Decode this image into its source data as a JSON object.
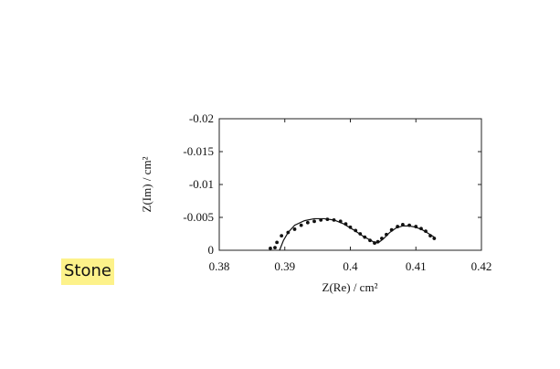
{
  "label": "Stone",
  "chart_data": {
    "type": "scatter",
    "xlabel": "Z(Re) /   cm²",
    "ylabel": "Z(Im) /   cm²",
    "xlim": [
      0.38,
      0.42
    ],
    "xticks": [
      0.38,
      0.39,
      0.4,
      0.41,
      0.42
    ],
    "ylim": [
      0,
      -0.02
    ],
    "yticks": [
      0,
      -0.005,
      -0.01,
      -0.015,
      -0.02
    ],
    "series": [
      {
        "mode": "markers",
        "color": "#111111",
        "x": [
          0.3878,
          0.3885,
          0.3888,
          0.3895,
          0.3905,
          0.3915,
          0.3925,
          0.3935,
          0.3945,
          0.3955,
          0.3965,
          0.3975,
          0.3985,
          0.3993,
          0.4,
          0.4008,
          0.4015,
          0.4022,
          0.403,
          0.4037,
          0.4042,
          0.4048,
          0.4055,
          0.4063,
          0.4072,
          0.408,
          0.409,
          0.41,
          0.4108,
          0.4115,
          0.4122,
          0.4128
        ],
        "y": [
          -0.0003,
          -0.0004,
          -0.0012,
          -0.0022,
          -0.0027,
          -0.0032,
          -0.0038,
          -0.0042,
          -0.0044,
          -0.0046,
          -0.0047,
          -0.0046,
          -0.0044,
          -0.004,
          -0.0035,
          -0.003,
          -0.0025,
          -0.002,
          -0.0015,
          -0.0011,
          -0.0013,
          -0.0018,
          -0.0024,
          -0.0031,
          -0.0036,
          -0.0039,
          -0.0038,
          -0.0036,
          -0.0033,
          -0.0029,
          -0.0022,
          -0.0018
        ]
      },
      {
        "mode": "line",
        "color": "#111111",
        "x": [
          0.3892,
          0.3898,
          0.3905,
          0.3915,
          0.393,
          0.3945,
          0.396,
          0.3975,
          0.399,
          0.4005,
          0.402,
          0.4035,
          0.4042,
          0.405,
          0.406,
          0.407,
          0.408,
          0.409,
          0.41,
          0.411,
          0.412,
          0.4128
        ],
        "y": [
          0,
          -0.0015,
          -0.0027,
          -0.0038,
          -0.0045,
          -0.0048,
          -0.0048,
          -0.0046,
          -0.004,
          -0.0031,
          -0.0021,
          -0.0013,
          -0.0011,
          -0.0017,
          -0.0027,
          -0.0034,
          -0.0037,
          -0.0037,
          -0.0035,
          -0.0031,
          -0.0025,
          -0.002
        ]
      }
    ]
  }
}
